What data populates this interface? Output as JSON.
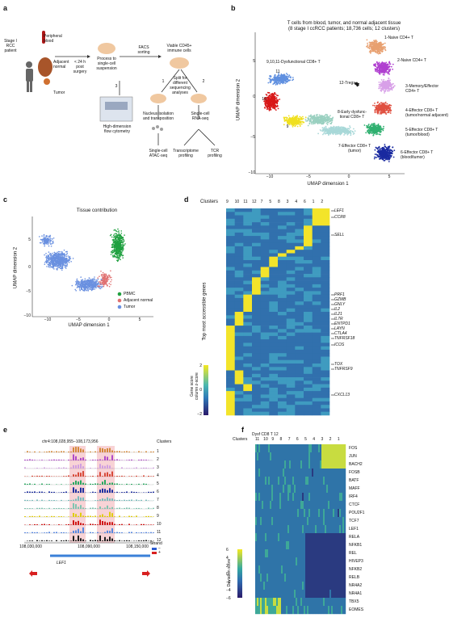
{
  "panel_labels": [
    "a",
    "b",
    "c",
    "d",
    "e",
    "f"
  ],
  "panel_a": {
    "patient": "Stage I\nRCC\npatient",
    "sources": [
      "Peripheral\nblood",
      "Adjacent\nnormal",
      "Tumor"
    ],
    "time": "< 24 h\npost\nsurgery",
    "process": "Process to\nsingle-cell\nsuspension",
    "facs": "FACS\nsorting",
    "viable": "Viable CD45+\nimmune cells",
    "split": "Split for\ndifferent\nsequencing\nanalyses",
    "steps": [
      "1",
      "2",
      "3"
    ],
    "nucleus": "Nucleus isolation\nand transposition",
    "scrna": "Single-cell\nRNA-seq",
    "flow": "High-dimension\nflow cytometry",
    "atac": "Single-cell\nATAC-seq",
    "transcriptome": "Transcriptome\nprofiling",
    "tcr": "TCR\nprofiling"
  },
  "panel_b": {
    "title": "T cells from blood, tumor, and normal adjacent tissue",
    "subtitle": "(8 stage I ccRCC patients; 18,736 cells; 12 clusters)",
    "xlabel": "UMAP dimension 1",
    "ylabel": "UMAP dimension 2",
    "xticks": [
      "−10",
      "−5",
      "0",
      "5"
    ],
    "yticks": [
      "5",
      "0",
      "−5",
      "−10"
    ],
    "cluster_labels": [
      "1-Naive CD4+ T",
      "2-Naive CD4+ T",
      "3-Memory/Effector\nCD4+ T",
      "4-Effector CD8+ T\n(tumor/normal adjacent)",
      "5-Effector CD8+ T\n(tumor/blood)",
      "6-Effector CD8+ T\n(blood/tumor)",
      "7-Effector CD8+ T\n(tumor)",
      "8-Early dysfunc-\ntional CD8+ T",
      "9,10,11-Dysfunctional CD8+ T",
      "12-Tregs"
    ],
    "inline_numbers": [
      "11",
      "10",
      "9"
    ],
    "colors": {
      "c1": "#e8a070",
      "c2": "#b040d0",
      "c3": "#d8a0e8",
      "c4": "#e05040",
      "c5": "#30b070",
      "c6": "#1a2aa0",
      "c7": "#a8d8d8",
      "c8": "#9ad0c0",
      "c9": "#f0e020",
      "c10": "#d81818",
      "c11": "#6090e0",
      "c12": "#1a1a1a"
    }
  },
  "panel_c": {
    "title": "Tissue contribution",
    "xlabel": "UMAP dimension 1",
    "ylabel": "UMAP dimension 2",
    "xticks": [
      "−10",
      "−5",
      "0",
      "5"
    ],
    "yticks": [
      "5",
      "0",
      "−5",
      "−10"
    ],
    "legend": [
      "PBMC",
      "Adjacent normal",
      "Tumor"
    ],
    "colors": {
      "pbmc": "#20a040",
      "normal": "#e07070",
      "tumor": "#6a90e0"
    }
  },
  "panel_d": {
    "clusters_label": "Clusters",
    "clusters": [
      "9",
      "10",
      "11",
      "12",
      "7",
      "5",
      "8",
      "3",
      "4",
      "6",
      "1",
      "2"
    ],
    "ylabel": "Top most accessible genes",
    "genes": [
      "LEF1",
      "CCR8",
      "SELL",
      "PRF1",
      "GZMB",
      "GNLY",
      "IL2",
      "IL21",
      "IL7R",
      "ENTPD1",
      "LAYN",
      "CTLA4",
      "TNFRSF18",
      "ICOS",
      "TOX",
      "TNFRSF9",
      "CXCL13"
    ],
    "colorbar_title": "Gene score\ncolumn z-score",
    "colorbar_ticks": [
      "2",
      "0",
      "−2"
    ]
  },
  "panel_e": {
    "coords": "chr4:108,028,955–108,173,956",
    "clusters_label": "Clusters",
    "tracks": [
      "1",
      "2",
      "3",
      "4",
      "5",
      "6",
      "7",
      "8",
      "9",
      "10",
      "11",
      "12"
    ],
    "xticks": [
      "108,030,000",
      "108,090,000",
      "108,150,000"
    ],
    "gene": "LEF1",
    "strand_label": "Strand",
    "strand_values": [
      "−",
      "+"
    ]
  },
  "panel_f": {
    "header": "Dysf CD8 T  12",
    "clusters_label": "Clusters",
    "clusters": [
      "11",
      "10",
      "9",
      "8",
      "7",
      "6",
      "5",
      "4",
      "3",
      "2",
      "1"
    ],
    "tfs": [
      "FOS",
      "JUN",
      "BACH2",
      "FOSB",
      "BATF",
      "MAFF",
      "IRF4",
      "CTCF",
      "POU2F1",
      "TCF7",
      "LEF1",
      "RELA",
      "NFKB1",
      "REL",
      "HIVEP3",
      "NFKB2",
      "RELB",
      "NR4A2",
      "NR4A1",
      "TBX5",
      "EOMES"
    ],
    "colorbar_title": "Deviation score",
    "colorbar_ticks": [
      "−6",
      "−4",
      "−2",
      "0",
      "2",
      "4",
      "6"
    ]
  }
}
